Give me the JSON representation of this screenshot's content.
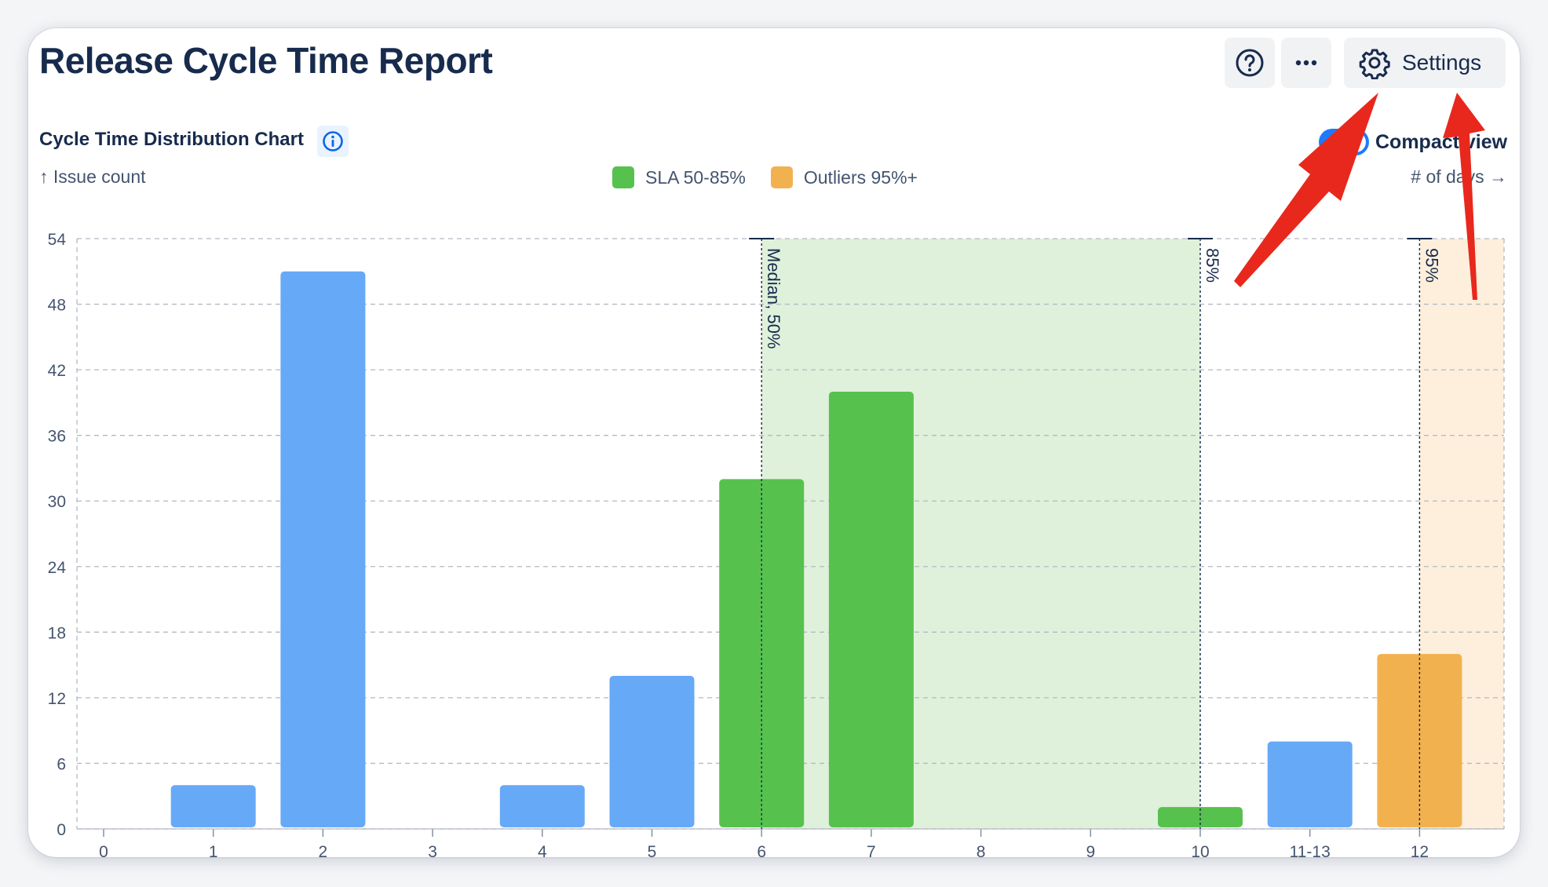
{
  "header": {
    "title": "Release Cycle Time Report",
    "settings_label": "Settings"
  },
  "chart_section": {
    "heading": "Cycle Time Distribution Chart",
    "compact_view_label": "Compact view",
    "compact_view_on": true,
    "y_caption": "↑ Issue count",
    "x_caption": "# of days →"
  },
  "colors": {
    "normal_bar": "#66a9f7",
    "sla_bar": "#57c14e",
    "outlier_bar": "#f2b14f",
    "sla_band": "#dff1da",
    "outlier_band": "#fdefdc",
    "annotation_arrow": "#e8281c"
  },
  "icons": {
    "help": "question-circle-icon",
    "more": "ellipsis-icon",
    "settings": "gear-icon",
    "info": "info-circle-icon"
  },
  "chart_data": {
    "type": "bar",
    "categories": [
      "0",
      "1",
      "2",
      "3",
      "4",
      "5",
      "6",
      "7",
      "8",
      "9",
      "10",
      "11-13",
      "12"
    ],
    "values": [
      0,
      4,
      51,
      0,
      4,
      14,
      32,
      40,
      0,
      0,
      2,
      8,
      16
    ],
    "bar_groups": [
      "normal",
      "normal",
      "normal",
      "normal",
      "normal",
      "normal",
      "sla",
      "sla",
      "sla",
      "sla",
      "sla",
      "normal",
      "outlier"
    ],
    "ylim": [
      0,
      54
    ],
    "yticks": [
      0,
      6,
      12,
      18,
      24,
      30,
      36,
      42,
      48,
      54
    ],
    "grid": true,
    "legend": [
      {
        "label": "SLA 50-85%",
        "group": "sla"
      },
      {
        "label": "Outliers 95%+",
        "group": "outlier"
      }
    ],
    "legend_position": "top-center",
    "markers": [
      {
        "label": "Median, 50%",
        "at_category": "6"
      },
      {
        "label": "85%",
        "at_category": "10"
      },
      {
        "label": "95%",
        "at_category": "12"
      }
    ],
    "bands": [
      {
        "group": "sla",
        "from_category": "6",
        "to_category": "10"
      },
      {
        "group": "outlier",
        "from_category": "12",
        "to_category": "end"
      }
    ]
  }
}
